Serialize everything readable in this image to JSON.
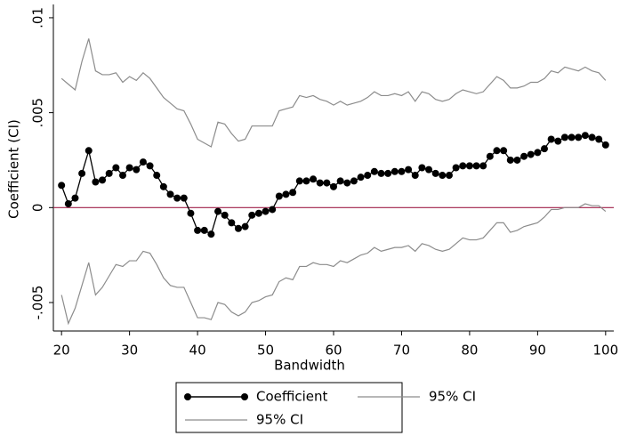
{
  "chart_data": {
    "type": "line",
    "x_label": "Bandwidth",
    "y_label": "Coefficient (CI)",
    "x": [
      20,
      21,
      22,
      23,
      24,
      25,
      26,
      27,
      28,
      29,
      30,
      31,
      32,
      33,
      34,
      35,
      36,
      37,
      38,
      39,
      40,
      41,
      42,
      43,
      44,
      45,
      46,
      47,
      48,
      49,
      50,
      51,
      52,
      53,
      54,
      55,
      56,
      57,
      58,
      59,
      60,
      61,
      62,
      63,
      64,
      65,
      66,
      67,
      68,
      69,
      70,
      71,
      72,
      73,
      74,
      75,
      76,
      77,
      78,
      79,
      80,
      81,
      82,
      83,
      84,
      85,
      86,
      87,
      88,
      89,
      90,
      91,
      92,
      93,
      94,
      95,
      96,
      97,
      98,
      99,
      100
    ],
    "series": [
      {
        "name": "Coefficient",
        "color": "#000000",
        "marker": true,
        "values": [
          0.00117,
          0.0002,
          0.0005,
          0.0018,
          0.003,
          0.00135,
          0.00145,
          0.0018,
          0.0021,
          0.0017,
          0.0021,
          0.002,
          0.0024,
          0.0022,
          0.0017,
          0.0011,
          0.0007,
          0.0005,
          0.0005,
          -0.0003,
          -0.0012,
          -0.0012,
          -0.0014,
          -0.0002,
          -0.0004,
          -0.0008,
          -0.0011,
          -0.001,
          -0.0004,
          -0.0003,
          -0.0002,
          -0.0001,
          0.0006,
          0.0007,
          0.0008,
          0.0014,
          0.0014,
          0.0015,
          0.0013,
          0.0013,
          0.0011,
          0.0014,
          0.0013,
          0.0014,
          0.0016,
          0.0017,
          0.0019,
          0.0018,
          0.0018,
          0.0019,
          0.0019,
          0.002,
          0.0017,
          0.0021,
          0.002,
          0.0018,
          0.0017,
          0.0017,
          0.0021,
          0.0022,
          0.0022,
          0.0022,
          0.0022,
          0.0027,
          0.003,
          0.003,
          0.0025,
          0.0025,
          0.0027,
          0.0028,
          0.0029,
          0.0031,
          0.0036,
          0.0035,
          0.0037,
          0.0037,
          0.0037,
          0.0038,
          0.0037,
          0.0036,
          0.0033
        ]
      },
      {
        "name": "95% CI",
        "color": "#8c8c8c",
        "marker": false,
        "values": [
          0.0068,
          0.0065,
          0.0062,
          0.0077,
          0.0089,
          0.0072,
          0.007,
          0.007,
          0.0071,
          0.0066,
          0.0069,
          0.0067,
          0.0071,
          0.0068,
          0.0063,
          0.0058,
          0.0055,
          0.0052,
          0.0051,
          0.0044,
          0.0036,
          0.0034,
          0.0032,
          0.0045,
          0.0044,
          0.0039,
          0.0035,
          0.0036,
          0.0043,
          0.0043,
          0.0043,
          0.0043,
          0.0051,
          0.0052,
          0.0053,
          0.0059,
          0.0058,
          0.0059,
          0.0057,
          0.0056,
          0.0054,
          0.0056,
          0.0054,
          0.0055,
          0.0056,
          0.0058,
          0.0061,
          0.0059,
          0.0059,
          0.006,
          0.0059,
          0.0061,
          0.0056,
          0.0061,
          0.006,
          0.0057,
          0.0056,
          0.0057,
          0.006,
          0.0062,
          0.0061,
          0.006,
          0.0061,
          0.0065,
          0.0069,
          0.0067,
          0.0063,
          0.0063,
          0.0064,
          0.0066,
          0.0066,
          0.0068,
          0.0072,
          0.0071,
          0.0074,
          0.0073,
          0.0072,
          0.0074,
          0.0072,
          0.0071,
          0.0067
        ]
      },
      {
        "name": "95% CI",
        "color": "#8c8c8c",
        "marker": false,
        "values": [
          -0.0046,
          -0.0061,
          -0.0053,
          -0.0041,
          -0.0029,
          -0.0046,
          -0.0042,
          -0.0036,
          -0.003,
          -0.0031,
          -0.0028,
          -0.0028,
          -0.0023,
          -0.0024,
          -0.003,
          -0.0037,
          -0.0041,
          -0.0042,
          -0.0042,
          -0.005,
          -0.0058,
          -0.0058,
          -0.0059,
          -0.005,
          -0.0051,
          -0.0055,
          -0.0057,
          -0.0055,
          -0.005,
          -0.0049,
          -0.0047,
          -0.0046,
          -0.0039,
          -0.0037,
          -0.0038,
          -0.0031,
          -0.0031,
          -0.0029,
          -0.003,
          -0.003,
          -0.0031,
          -0.0028,
          -0.0029,
          -0.0027,
          -0.0025,
          -0.0024,
          -0.0021,
          -0.0023,
          -0.0022,
          -0.0021,
          -0.0021,
          -0.002,
          -0.0023,
          -0.0019,
          -0.002,
          -0.0022,
          -0.0023,
          -0.0022,
          -0.0019,
          -0.0016,
          -0.0017,
          -0.0017,
          -0.0016,
          -0.0012,
          -0.0008,
          -0.0008,
          -0.0013,
          -0.0012,
          -0.001,
          -0.0009,
          -0.0008,
          -0.0005,
          -0.0001,
          -0.0001,
          0,
          0,
          0,
          0.0002,
          0.0001,
          0.0001,
          -0.0002
        ]
      }
    ],
    "xlim": [
      18.8,
      101.2
    ],
    "xticks": [
      20,
      30,
      40,
      50,
      60,
      70,
      80,
      90,
      100
    ],
    "ylim": [
      -0.0065,
      0.0107
    ],
    "yticks": [
      {
        "value": -0.005,
        "label": "-.005"
      },
      0,
      {
        "value": 0.005,
        "label": ".005"
      },
      {
        "value": 0.01,
        "label": ".01"
      }
    ],
    "reference_line": 0,
    "reference_color": "#a0204a",
    "legend": "bottom"
  }
}
